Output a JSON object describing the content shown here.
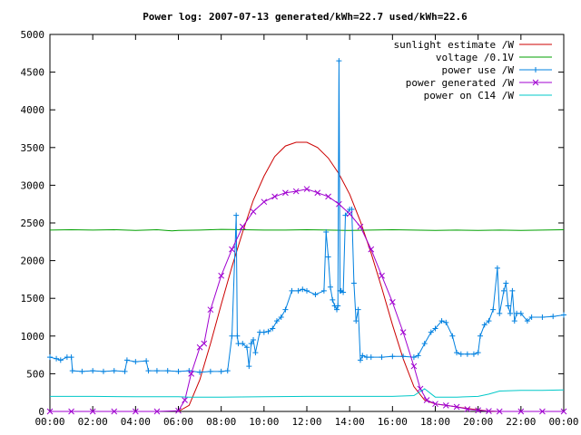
{
  "chart_data": {
    "type": "line",
    "title": "Power log: 2007-07-13 generated/kWh=22.7 used/kWh=22.6",
    "xlabel": "",
    "ylabel": "",
    "ylim": [
      0,
      5000
    ],
    "xlim": [
      0,
      24
    ],
    "grid": false,
    "legend_position": "top-right",
    "x_tick_labels": [
      "00:00",
      "02:00",
      "04:00",
      "06:00",
      "08:00",
      "10:00",
      "12:00",
      "14:00",
      "16:00",
      "18:00",
      "20:00",
      "22:00",
      "00:00"
    ],
    "y_tick_labels": [
      "0",
      "500",
      "1000",
      "1500",
      "2000",
      "2500",
      "3000",
      "3500",
      "4000",
      "4500",
      "5000"
    ],
    "series": [
      {
        "name": "sunlight estimate /W",
        "color": "#cc0000",
        "style": "line",
        "x": [
          6.0,
          6.5,
          7.0,
          7.5,
          8.0,
          8.5,
          9.0,
          9.5,
          10.0,
          10.5,
          11.0,
          11.5,
          12.0,
          12.5,
          13.0,
          13.5,
          14.0,
          14.5,
          15.0,
          15.5,
          16.0,
          16.5,
          17.0,
          17.5,
          18.0,
          18.5,
          19.0,
          19.5,
          20.0,
          20.5,
          21.0
        ],
        "y": [
          0,
          80,
          420,
          900,
          1420,
          1920,
          2380,
          2800,
          3120,
          3380,
          3520,
          3570,
          3570,
          3500,
          3360,
          3150,
          2880,
          2520,
          2100,
          1640,
          1150,
          700,
          330,
          150,
          100,
          80,
          60,
          40,
          20,
          5,
          0
        ]
      },
      {
        "name": "voltage /0.1V",
        "color": "#00a000",
        "style": "line",
        "x": [
          0,
          1,
          2,
          3,
          4,
          5,
          5.7,
          6,
          7,
          8,
          9,
          10,
          11,
          12,
          13,
          14,
          15,
          16,
          17,
          18,
          19,
          20,
          21,
          22,
          23,
          24
        ],
        "y": [
          2405,
          2410,
          2405,
          2410,
          2400,
          2410,
          2395,
          2400,
          2405,
          2415,
          2410,
          2405,
          2405,
          2410,
          2405,
          2400,
          2405,
          2410,
          2405,
          2400,
          2405,
          2400,
          2405,
          2400,
          2405,
          2410
        ]
      },
      {
        "name": "power use /W",
        "color": "#0080e0",
        "style": "linespoints",
        "x": [
          0,
          0.3,
          0.5,
          0.8,
          1.0,
          1.05,
          1.5,
          2.0,
          2.5,
          3.0,
          3.5,
          3.6,
          4.0,
          4.5,
          4.6,
          5.0,
          5.5,
          6.0,
          6.5,
          7.0,
          7.5,
          8.0,
          8.3,
          8.5,
          8.7,
          8.75,
          8.8,
          9.0,
          9.2,
          9.3,
          9.4,
          9.5,
          9.6,
          9.8,
          10.0,
          10.2,
          10.4,
          10.6,
          10.8,
          11.0,
          11.3,
          11.6,
          11.8,
          12.0,
          12.4,
          12.8,
          12.9,
          13.0,
          13.1,
          13.2,
          13.3,
          13.4,
          13.45,
          13.5,
          13.55,
          13.6,
          13.7,
          13.8,
          14.0,
          14.1,
          14.2,
          14.3,
          14.4,
          14.5,
          14.6,
          14.8,
          15.0,
          15.5,
          16.0,
          16.5,
          17.0,
          17.2,
          17.5,
          17.8,
          18.0,
          18.3,
          18.5,
          18.8,
          19.0,
          19.2,
          19.5,
          19.8,
          20.0,
          20.1,
          20.3,
          20.5,
          20.7,
          20.9,
          21.0,
          21.2,
          21.3,
          21.4,
          21.5,
          21.6,
          21.7,
          21.8,
          22.0,
          22.3,
          22.5,
          23.0,
          23.5,
          24.0
        ],
        "y": [
          720,
          700,
          680,
          720,
          720,
          540,
          530,
          540,
          530,
          540,
          530,
          680,
          660,
          670,
          540,
          540,
          540,
          530,
          540,
          520,
          530,
          530,
          540,
          1000,
          2600,
          1000,
          900,
          900,
          850,
          600,
          900,
          950,
          780,
          1050,
          1050,
          1060,
          1100,
          1200,
          1250,
          1350,
          1600,
          1600,
          1620,
          1600,
          1550,
          1600,
          2380,
          2050,
          1650,
          1480,
          1400,
          1350,
          1400,
          4650,
          1600,
          1600,
          1580,
          2600,
          2680,
          2680,
          1700,
          1200,
          1350,
          680,
          740,
          720,
          720,
          720,
          730,
          730,
          720,
          740,
          900,
          1050,
          1100,
          1200,
          1180,
          1000,
          780,
          760,
          760,
          760,
          780,
          1000,
          1150,
          1200,
          1350,
          1900,
          1300,
          1600,
          1700,
          1400,
          1300,
          1600,
          1200,
          1300,
          1300,
          1200,
          1250,
          1250,
          1260,
          1280
        ]
      },
      {
        "name": "power generated /W",
        "color": "#a000d0",
        "style": "linespoints",
        "x": [
          0,
          1,
          2,
          3,
          4,
          5,
          6,
          6.3,
          6.6,
          7.0,
          7.2,
          7.5,
          8.0,
          8.5,
          9.0,
          9.5,
          10.0,
          10.5,
          11.0,
          11.5,
          12.0,
          12.5,
          13.0,
          13.5,
          14.0,
          14.5,
          15.0,
          15.5,
          16.0,
          16.5,
          17.0,
          17.3,
          17.6,
          18.0,
          18.5,
          19.0,
          19.5,
          20.0,
          20.5,
          21.0,
          22.0,
          23.0,
          24.0
        ],
        "y": [
          0,
          0,
          0,
          0,
          0,
          0,
          10,
          150,
          500,
          850,
          900,
          1350,
          1800,
          2150,
          2450,
          2650,
          2780,
          2850,
          2900,
          2920,
          2950,
          2900,
          2850,
          2750,
          2620,
          2450,
          2150,
          1800,
          1450,
          1050,
          600,
          300,
          150,
          100,
          80,
          60,
          30,
          15,
          5,
          0,
          0,
          0,
          0
        ]
      },
      {
        "name": "power on C14 /W",
        "color": "#00c8c8",
        "style": "line",
        "x": [
          0,
          2,
          4,
          6,
          6.5,
          8,
          10,
          12,
          14,
          16,
          17,
          17.5,
          18,
          19,
          20,
          20.5,
          21,
          22,
          23,
          24
        ],
        "y": [
          200,
          200,
          195,
          195,
          190,
          190,
          195,
          200,
          200,
          200,
          210,
          300,
          190,
          190,
          200,
          230,
          270,
          280,
          280,
          285
        ]
      }
    ]
  }
}
